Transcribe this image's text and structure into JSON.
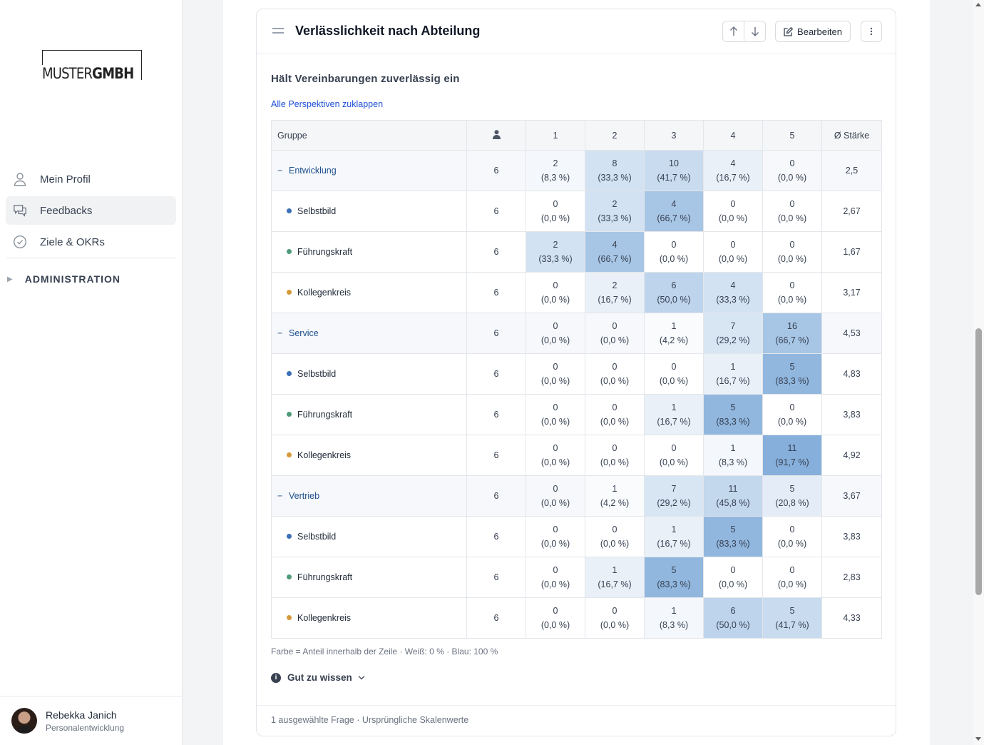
{
  "logo": {
    "text_light": "MUSTER",
    "text_bold": "GMBH"
  },
  "nav": {
    "items": [
      {
        "label": "Mein Profil",
        "icon": "user-icon",
        "active": false
      },
      {
        "label": "Feedbacks",
        "icon": "chat-bubbles-icon",
        "active": true
      },
      {
        "label": "Ziele & OKRs",
        "icon": "check-circle-icon",
        "active": false
      }
    ],
    "admin_label": "ADMINISTRATION"
  },
  "user": {
    "name": "Rebekka Janich",
    "role": "Personalentwicklung"
  },
  "card": {
    "title": "Verlässlichkeit nach Abteilung",
    "edit_label": "Bearbeiten",
    "question": "Hält Vereinbarungen zuverlässig ein",
    "collapse_link": "Alle Perspektiven zuklappen",
    "legend_note": "Farbe = Anteil innerhalb der Zeile · Weiß: 0 % · Blau: 100 %",
    "know_label": "Gut zu wissen",
    "footer": "1 ausgewählte Frage · Ursprüngliche Skalenwerte"
  },
  "table": {
    "headers": [
      "Gruppe",
      "",
      "1",
      "2",
      "3",
      "4",
      "5",
      "Ø Stärke"
    ],
    "perspective_colors": {
      "Selbstbild": "#3b6fb6",
      "Führungskraft": "#4f9a7a",
      "Kollegenkreis": "#d69a3a"
    },
    "rows": [
      {
        "type": "group",
        "name": "Entwicklung",
        "n": "6",
        "cells": [
          [
            "2",
            "(8,3 %)"
          ],
          [
            "8",
            "(33,3 %)"
          ],
          [
            "10",
            "(41,7 %)"
          ],
          [
            "4",
            "(16,7 %)"
          ],
          [
            "0",
            "(0,0 %)"
          ]
        ],
        "share": [
          8.3,
          33.3,
          41.7,
          16.7,
          0
        ],
        "avg": "2,5"
      },
      {
        "type": "sub",
        "name": "Selbstbild",
        "n": "6",
        "cells": [
          [
            "0",
            "(0,0 %)"
          ],
          [
            "2",
            "(33,3 %)"
          ],
          [
            "4",
            "(66,7 %)"
          ],
          [
            "0",
            "(0,0 %)"
          ],
          [
            "0",
            "(0,0 %)"
          ]
        ],
        "share": [
          0,
          33.3,
          66.7,
          0,
          0
        ],
        "avg": "2,67"
      },
      {
        "type": "sub",
        "name": "Führungskraft",
        "n": "6",
        "cells": [
          [
            "2",
            "(33,3 %)"
          ],
          [
            "4",
            "(66,7 %)"
          ],
          [
            "0",
            "(0,0 %)"
          ],
          [
            "0",
            "(0,0 %)"
          ],
          [
            "0",
            "(0,0 %)"
          ]
        ],
        "share": [
          33.3,
          66.7,
          0,
          0,
          0
        ],
        "avg": "1,67"
      },
      {
        "type": "sub",
        "name": "Kollegenkreis",
        "n": "6",
        "cells": [
          [
            "0",
            "(0,0 %)"
          ],
          [
            "2",
            "(16,7 %)"
          ],
          [
            "6",
            "(50,0 %)"
          ],
          [
            "4",
            "(33,3 %)"
          ],
          [
            "0",
            "(0,0 %)"
          ]
        ],
        "share": [
          0,
          16.7,
          50,
          33.3,
          0
        ],
        "avg": "3,17"
      },
      {
        "type": "group",
        "name": "Service",
        "n": "6",
        "cells": [
          [
            "0",
            "(0,0 %)"
          ],
          [
            "0",
            "(0,0 %)"
          ],
          [
            "1",
            "(4,2 %)"
          ],
          [
            "7",
            "(29,2 %)"
          ],
          [
            "16",
            "(66,7 %)"
          ]
        ],
        "share": [
          0,
          0,
          4.2,
          29.2,
          66.7
        ],
        "avg": "4,53"
      },
      {
        "type": "sub",
        "name": "Selbstbild",
        "n": "6",
        "cells": [
          [
            "0",
            "(0,0 %)"
          ],
          [
            "0",
            "(0,0 %)"
          ],
          [
            "0",
            "(0,0 %)"
          ],
          [
            "1",
            "(16,7 %)"
          ],
          [
            "5",
            "(83,3 %)"
          ]
        ],
        "share": [
          0,
          0,
          0,
          16.7,
          83.3
        ],
        "avg": "4,83"
      },
      {
        "type": "sub",
        "name": "Führungskraft",
        "n": "6",
        "cells": [
          [
            "0",
            "(0,0 %)"
          ],
          [
            "0",
            "(0,0 %)"
          ],
          [
            "1",
            "(16,7 %)"
          ],
          [
            "5",
            "(83,3 %)"
          ],
          [
            "0",
            "(0,0 %)"
          ]
        ],
        "share": [
          0,
          0,
          16.7,
          83.3,
          0
        ],
        "avg": "3,83"
      },
      {
        "type": "sub",
        "name": "Kollegenkreis",
        "n": "6",
        "cells": [
          [
            "0",
            "(0,0 %)"
          ],
          [
            "0",
            "(0,0 %)"
          ],
          [
            "0",
            "(0,0 %)"
          ],
          [
            "1",
            "(8,3 %)"
          ],
          [
            "11",
            "(91,7 %)"
          ]
        ],
        "share": [
          0,
          0,
          0,
          8.3,
          91.7
        ],
        "avg": "4,92"
      },
      {
        "type": "group",
        "name": "Vertrieb",
        "n": "6",
        "cells": [
          [
            "0",
            "(0,0 %)"
          ],
          [
            "1",
            "(4,2 %)"
          ],
          [
            "7",
            "(29,2 %)"
          ],
          [
            "11",
            "(45,8 %)"
          ],
          [
            "5",
            "(20,8 %)"
          ]
        ],
        "share": [
          0,
          4.2,
          29.2,
          45.8,
          20.8
        ],
        "avg": "3,67"
      },
      {
        "type": "sub",
        "name": "Selbstbild",
        "n": "6",
        "cells": [
          [
            "0",
            "(0,0 %)"
          ],
          [
            "0",
            "(0,0 %)"
          ],
          [
            "1",
            "(16,7 %)"
          ],
          [
            "5",
            "(83,3 %)"
          ],
          [
            "0",
            "(0,0 %)"
          ]
        ],
        "share": [
          0,
          0,
          16.7,
          83.3,
          0
        ],
        "avg": "3,83"
      },
      {
        "type": "sub",
        "name": "Führungskraft",
        "n": "6",
        "cells": [
          [
            "0",
            "(0,0 %)"
          ],
          [
            "1",
            "(16,7 %)"
          ],
          [
            "5",
            "(83,3 %)"
          ],
          [
            "0",
            "(0,0 %)"
          ],
          [
            "0",
            "(0,0 %)"
          ]
        ],
        "share": [
          0,
          16.7,
          83.3,
          0,
          0
        ],
        "avg": "2,83"
      },
      {
        "type": "sub",
        "name": "Kollegenkreis",
        "n": "6",
        "cells": [
          [
            "0",
            "(0,0 %)"
          ],
          [
            "0",
            "(0,0 %)"
          ],
          [
            "1",
            "(8,3 %)"
          ],
          [
            "6",
            "(50,0 %)"
          ],
          [
            "5",
            "(41,7 %)"
          ]
        ],
        "share": [
          0,
          0,
          8.3,
          50,
          41.7
        ],
        "avg": "4,33"
      }
    ]
  }
}
